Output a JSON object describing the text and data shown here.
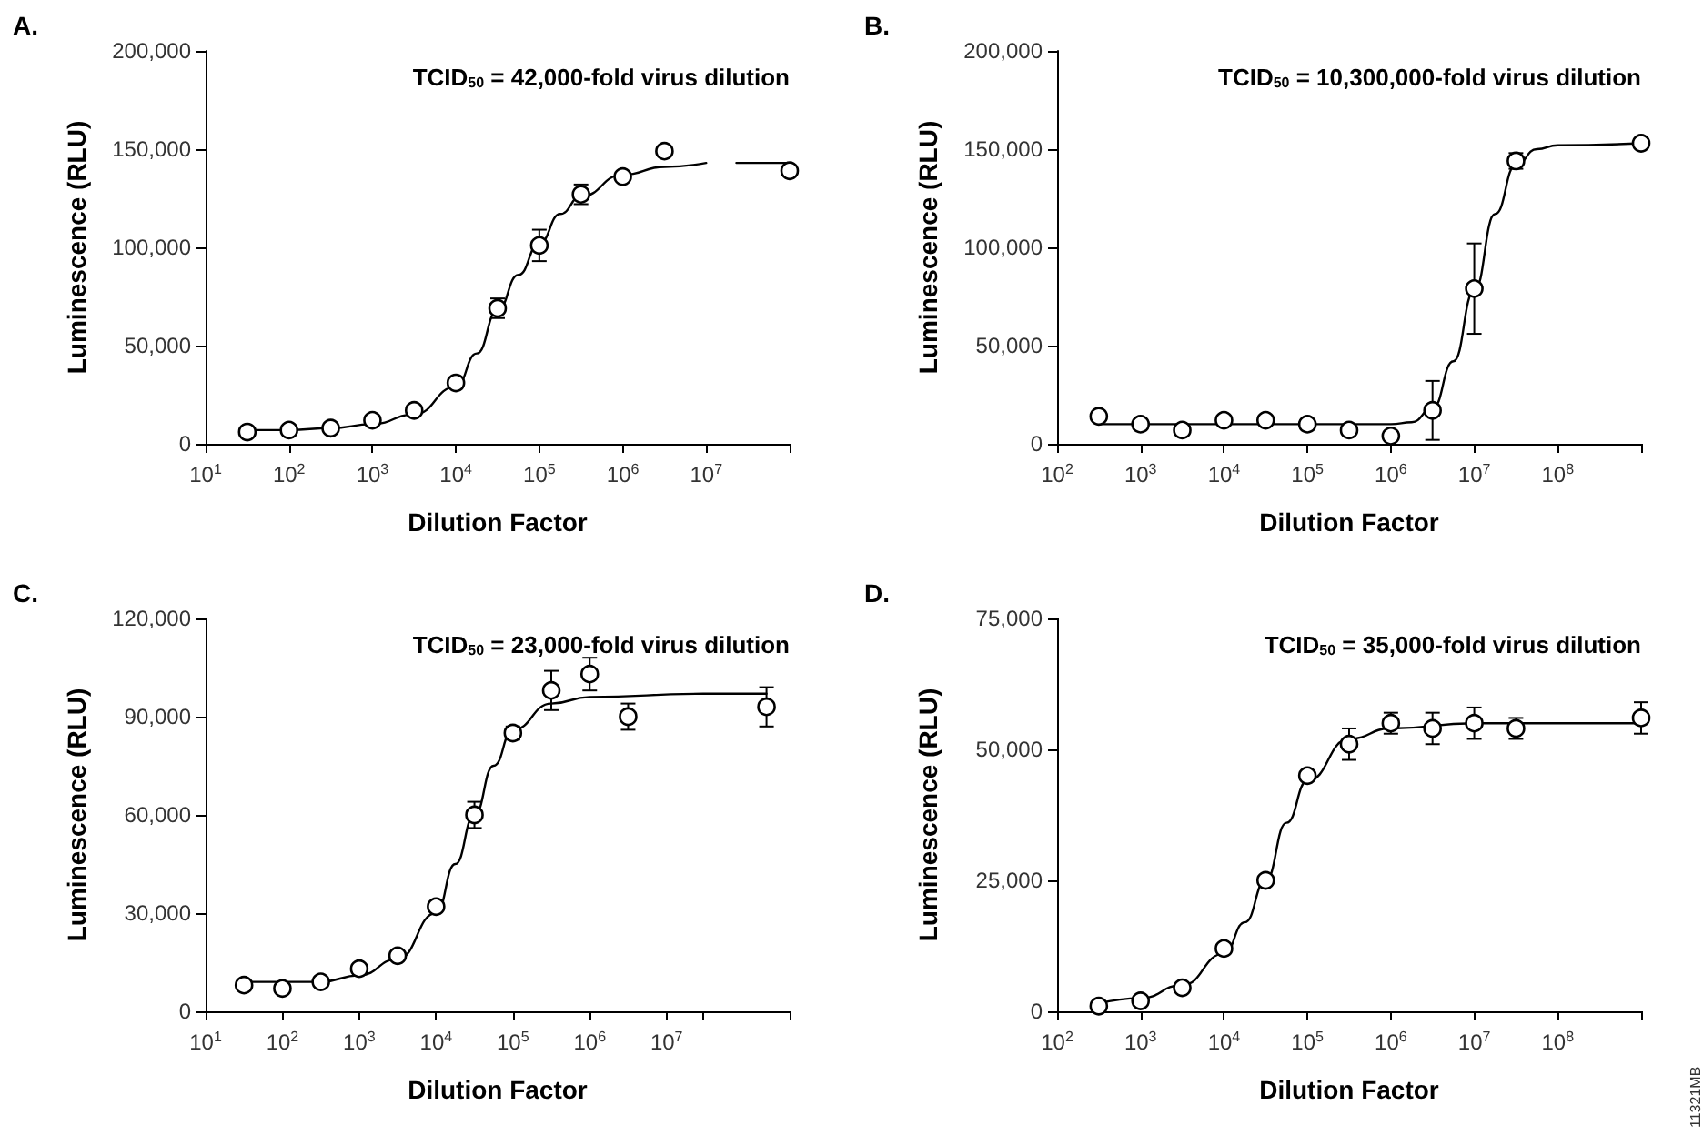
{
  "chart_data": [
    {
      "type": "scatter",
      "title": "A.",
      "annotations": [
        "TCID$_{50}$ = 42,000-fold virus dilution"
      ],
      "xlabel": "Dilution Factor",
      "ylabel": "Luminescence (RLU)",
      "log": "x",
      "grid": false,
      "line_style": "solid",
      "xlim": [
        10,
        100000000
      ],
      "xticks": [
        {
          "value": 10,
          "label": "10$^{1}$"
        },
        {
          "value": 100,
          "label": "10$^{2}$"
        },
        {
          "value": 1000,
          "label": "10$^{3}$"
        },
        {
          "value": 10000,
          "label": "10$^{4}$"
        },
        {
          "value": 100000,
          "label": "10$^{5}$"
        },
        {
          "value": 1000000,
          "label": "10$^{6}$"
        },
        {
          "value": 10000000,
          "label": "10$^{7}$"
        },
        {
          "value": 100000000,
          "label": null
        }
      ],
      "ylim": [
        0,
        200000
      ],
      "yticks": [
        {
          "value": 0,
          "label": "0"
        },
        {
          "value": 50000,
          "label": "50,000"
        },
        {
          "value": 100000,
          "label": "100,000"
        },
        {
          "value": 150000,
          "label": "150,000"
        },
        {
          "value": 200000,
          "label": "200,000"
        }
      ],
      "series": [
        {
          "marker": "circle",
          "color": "#000000",
          "x": [
            31.6,
            100,
            316,
            1000,
            3160,
            10000,
            31600,
            100000,
            316000,
            1000000,
            3160000,
            100000000
          ],
          "values": [
            6000,
            7000,
            8000,
            12000,
            17000,
            31000,
            69000,
            101000,
            127000,
            136000,
            149000,
            139000
          ],
          "errors": [
            null,
            null,
            null,
            null,
            null,
            null,
            5000,
            8000,
            5000,
            null,
            null,
            null
          ]
        },
        {
          "type": "line",
          "marker": "none",
          "color": "#000000",
          "x": [
            31.6,
            100,
            316,
            1000,
            3160,
            10000,
            17800,
            31600,
            56200,
            100000,
            178000,
            316000,
            1000000,
            3160000,
            10000000,
            16000000,
            23000000,
            100000000
          ],
          "values": [
            7000,
            7000,
            8000,
            10000,
            15000,
            29000,
            46000,
            68000,
            86000,
            102000,
            117000,
            126000,
            137000,
            141000,
            143000,
            null,
            143000,
            143000
          ]
        }
      ]
    },
    {
      "type": "scatter",
      "title": "B.",
      "annotations": [
        "TCID$_{50}$ = 10,300,000-fold virus dilution"
      ],
      "xlabel": "Dilution Factor",
      "ylabel": "Luminescence (RLU)",
      "log": "x",
      "grid": false,
      "line_style": "solid",
      "xlim": [
        100,
        1000000000
      ],
      "xticks": [
        {
          "value": 100,
          "label": "10$^{2}$"
        },
        {
          "value": 1000,
          "label": "10$^{3}$"
        },
        {
          "value": 10000,
          "label": "10$^{4}$"
        },
        {
          "value": 100000,
          "label": "10$^{5}$"
        },
        {
          "value": 1000000,
          "label": "10$^{6}$"
        },
        {
          "value": 10000000,
          "label": "10$^{7}$"
        },
        {
          "value": 100000000,
          "label": "10$^{8}$"
        },
        {
          "value": 1000000000,
          "label": null
        }
      ],
      "ylim": [
        0,
        200000
      ],
      "yticks": [
        {
          "value": 0,
          "label": "0"
        },
        {
          "value": 50000,
          "label": "50,000"
        },
        {
          "value": 100000,
          "label": "100,000"
        },
        {
          "value": 150000,
          "label": "150,000"
        },
        {
          "value": 200000,
          "label": "200,000"
        }
      ],
      "series": [
        {
          "marker": "circle",
          "color": "#000000",
          "x": [
            316,
            1000,
            3160,
            10000,
            31600,
            100000,
            316000,
            1000000,
            3160000,
            10000000,
            31600000,
            1000000000
          ],
          "values": [
            14000,
            10000,
            7000,
            12000,
            12000,
            10000,
            7000,
            4000,
            17000,
            79000,
            144000,
            153000
          ],
          "errors": [
            null,
            null,
            null,
            null,
            null,
            null,
            null,
            null,
            15000,
            23000,
            4000,
            null
          ]
        },
        {
          "type": "line",
          "marker": "none",
          "color": "#000000",
          "x": [
            316,
            1000000,
            1780000,
            3160000,
            5620000,
            10000000,
            17800000,
            31600000,
            56200000,
            100000000,
            1000000000
          ],
          "values": [
            10000,
            10000,
            11000,
            18000,
            42000,
            78000,
            117000,
            142000,
            150000,
            152000,
            153000
          ]
        }
      ]
    },
    {
      "type": "scatter",
      "title": "C.",
      "annotations": [
        "TCID$_{50}$ = 23,000-fold virus dilution"
      ],
      "xlabel": "Dilution Factor",
      "ylabel": "Luminescence (RLU)",
      "log": "x",
      "grid": false,
      "line_style": "solid",
      "xlim": [
        10,
        400000000
      ],
      "xticks": [
        {
          "value": 10,
          "label": "10$^{1}$"
        },
        {
          "value": 100,
          "label": "10$^{2}$"
        },
        {
          "value": 1000,
          "label": "10$^{3}$"
        },
        {
          "value": 10000,
          "label": "10$^{4}$"
        },
        {
          "value": 100000,
          "label": "10$^{5}$"
        },
        {
          "value": 1000000,
          "label": "10$^{6}$"
        },
        {
          "value": 10000000,
          "label": "10$^{7}$"
        },
        {
          "value": 30000000,
          "label": null
        },
        {
          "value": 400000000,
          "label": null
        }
      ],
      "ylim": [
        0,
        120000
      ],
      "yticks": [
        {
          "value": 0,
          "label": "0"
        },
        {
          "value": 30000,
          "label": "30,000"
        },
        {
          "value": 60000,
          "label": "60,000"
        },
        {
          "value": 90000,
          "label": "90,000"
        },
        {
          "value": 120000,
          "label": "120,000"
        }
      ],
      "series": [
        {
          "marker": "circle",
          "color": "#000000",
          "x": [
            31.6,
            100,
            316,
            1000,
            3160,
            10000,
            31600,
            100000,
            316000,
            1000000,
            3160000,
            200000000
          ],
          "values": [
            8000,
            7000,
            9000,
            13000,
            17000,
            32000,
            60000,
            85000,
            98000,
            103000,
            90000,
            93000
          ],
          "errors": [
            null,
            null,
            null,
            null,
            null,
            null,
            4000,
            2000,
            6000,
            5000,
            4000,
            6000
          ]
        },
        {
          "type": "line",
          "marker": "none",
          "color": "#000000",
          "x": [
            31.6,
            316,
            1000,
            3160,
            10000,
            17800,
            31600,
            56200,
            100000,
            316000,
            1000000,
            30000000,
            200000000
          ],
          "values": [
            9000,
            9000,
            11000,
            16000,
            30000,
            45000,
            60000,
            75000,
            86000,
            94000,
            96000,
            97000,
            97000
          ]
        }
      ]
    },
    {
      "type": "scatter",
      "title": "D.",
      "annotations": [
        "TCID$_{50}$ = 35,000-fold virus dilution",
        "11321MB"
      ],
      "xlabel": "Dilution Factor",
      "ylabel": "Luminescence (RLU)",
      "log": "x",
      "grid": false,
      "line_style": "solid",
      "xlim": [
        100,
        1000000000
      ],
      "xticks": [
        {
          "value": 100,
          "label": "10$^{2}$"
        },
        {
          "value": 1000,
          "label": "10$^{3}$"
        },
        {
          "value": 10000,
          "label": "10$^{4}$"
        },
        {
          "value": 100000,
          "label": "10$^{5}$"
        },
        {
          "value": 1000000,
          "label": "10$^{6}$"
        },
        {
          "value": 10000000,
          "label": "10$^{7}$"
        },
        {
          "value": 100000000,
          "label": "10$^{8}$"
        },
        {
          "value": 1000000000,
          "label": null
        }
      ],
      "ylim": [
        0,
        75000
      ],
      "yticks": [
        {
          "value": 0,
          "label": "0"
        },
        {
          "value": 25000,
          "label": "25,000"
        },
        {
          "value": 50000,
          "label": "50,000"
        },
        {
          "value": 75000,
          "label": "75,000"
        }
      ],
      "series": [
        {
          "marker": "circle",
          "color": "#000000",
          "x": [
            316,
            1000,
            3160,
            10000,
            31600,
            100000,
            316000,
            1000000,
            3160000,
            10000000,
            31600000,
            1000000000
          ],
          "values": [
            1000,
            2000,
            4500,
            12000,
            25000,
            45000,
            51000,
            55000,
            54000,
            55000,
            54000,
            56000
          ],
          "errors": [
            null,
            null,
            null,
            null,
            null,
            null,
            3000,
            2000,
            3000,
            3000,
            2000,
            3000
          ]
        },
        {
          "type": "line",
          "marker": "none",
          "color": "#000000",
          "x": [
            316,
            1000,
            3160,
            10000,
            17800,
            31600,
            56200,
            100000,
            316000,
            1000000,
            10000000,
            1000000000
          ],
          "values": [
            1500,
            2500,
            5000,
            11000,
            17000,
            25000,
            36000,
            44000,
            52000,
            54000,
            55000,
            55000
          ]
        }
      ]
    }
  ]
}
